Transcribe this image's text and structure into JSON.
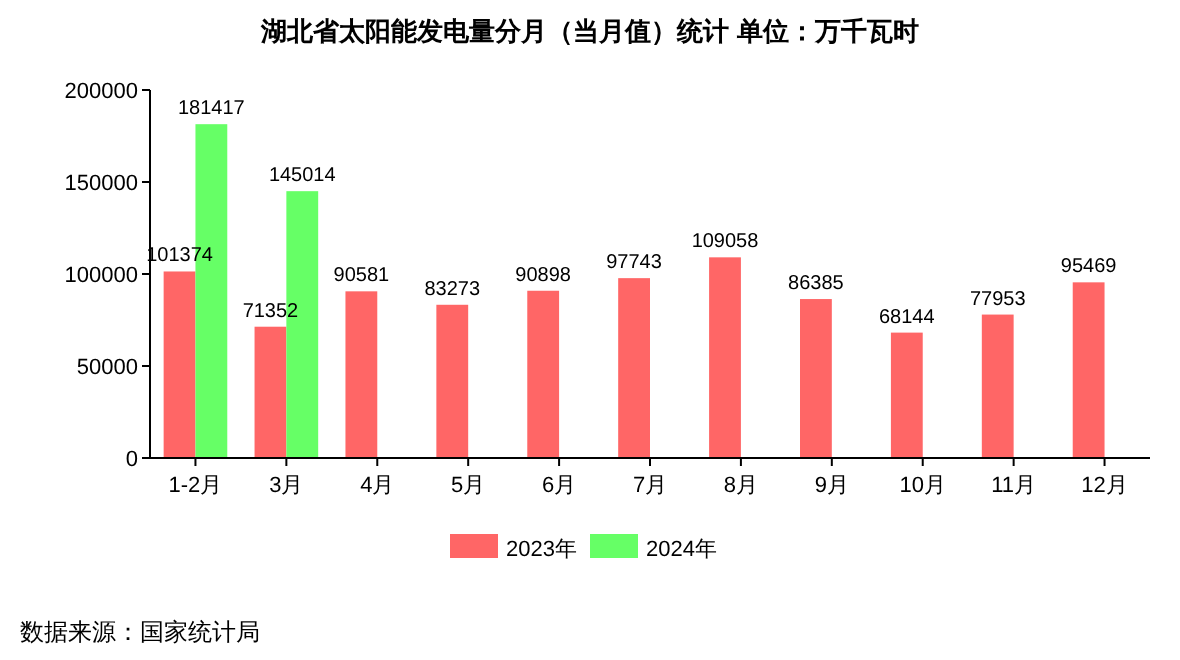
{
  "chart_data": {
    "type": "bar",
    "title": "湖北省太阳能发电量分月（当月值）统计  单位：万千瓦时",
    "categories": [
      "1-2月",
      "3月",
      "4月",
      "5月",
      "6月",
      "7月",
      "8月",
      "9月",
      "10月",
      "11月",
      "12月"
    ],
    "series": [
      {
        "name": "2023年",
        "color": "#ff6666",
        "values": [
          101374,
          71352,
          90581,
          83273,
          90898,
          97743,
          109058,
          86385,
          68144,
          77953,
          95469
        ]
      },
      {
        "name": "2024年",
        "color": "#66ff66",
        "values": [
          181417,
          145014,
          null,
          null,
          null,
          null,
          null,
          null,
          null,
          null,
          null
        ]
      }
    ],
    "ylim": [
      0,
      200000
    ],
    "yticks": [
      0,
      50000,
      100000,
      150000,
      200000
    ],
    "grid": false,
    "legend": "bottom",
    "data_labels": true,
    "annotations": [
      "数据来源：国家统计局"
    ]
  }
}
